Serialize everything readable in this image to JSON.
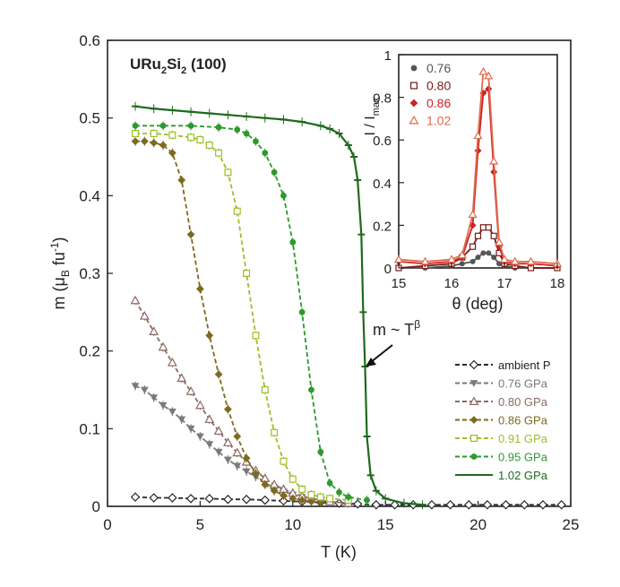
{
  "chart_data": [
    {
      "type": "scatter",
      "title": "URu2Si2 (100)",
      "title_parts": {
        "base": "URu",
        "sub1": "2",
        "mid": "Si",
        "sub2": "2",
        "tail": " (100)"
      },
      "xlabel": "T (K)",
      "ylabel_parts": {
        "a": "m (μ",
        "b": "B",
        "c": " fu",
        "d": "-1",
        "e": ")"
      },
      "xlim": [
        0,
        25
      ],
      "ylim": [
        0,
        0.6
      ],
      "xticks": [
        "0",
        "5",
        "10",
        "15",
        "20",
        "25"
      ],
      "yticks": [
        "0",
        "0.1",
        "0.2",
        "0.3",
        "0.4",
        "0.5",
        "0.6"
      ],
      "annotation": {
        "text": "m ~ T",
        "sup": "β"
      },
      "legend_position": "bottom-right",
      "series": [
        {
          "name": "ambient P",
          "color": "#2a2a2a",
          "marker": "diamond-open",
          "x": [
            1.5,
            2.5,
            3.5,
            4.5,
            5.5,
            6.5,
            7.5,
            8.5,
            9.5,
            10.5,
            11.5,
            12.5,
            13.5,
            14.5,
            15.5,
            16.5,
            17.5,
            18.5,
            19.5,
            20.5,
            21.5,
            22.5,
            23.5,
            24.5
          ],
          "y": [
            0.012,
            0.011,
            0.011,
            0.01,
            0.01,
            0.009,
            0.009,
            0.008,
            0.007,
            0.006,
            0.005,
            0.004,
            0.003,
            0.002,
            0.002,
            0.002,
            0.002,
            0.002,
            0.002,
            0.002,
            0.002,
            0.002,
            0.002,
            0.002
          ]
        },
        {
          "name": "0.76 GPa",
          "color": "#7a7a7a",
          "marker": "triangle-down",
          "x": [
            1.5,
            2.0,
            2.5,
            3.0,
            3.5,
            4.0,
            4.5,
            5.0,
            5.5,
            6.0,
            6.5,
            7.0,
            7.5,
            8.0,
            8.5,
            9.0,
            9.5,
            10.0,
            10.5,
            11.0,
            12.0,
            13.0
          ],
          "y": [
            0.155,
            0.15,
            0.14,
            0.13,
            0.122,
            0.112,
            0.1,
            0.09,
            0.08,
            0.07,
            0.06,
            0.052,
            0.045,
            0.038,
            0.03,
            0.024,
            0.019,
            0.015,
            0.012,
            0.01,
            0.006,
            0.004
          ]
        },
        {
          "name": "0.80 GPa",
          "color": "#8c6a64",
          "marker": "triangle-up-open",
          "x": [
            1.5,
            2.0,
            2.5,
            3.0,
            3.5,
            4.0,
            4.5,
            5.0,
            5.5,
            6.0,
            6.5,
            7.0,
            7.5,
            8.0,
            8.5,
            9.0,
            9.5,
            10.0,
            10.5,
            11.0,
            12.0,
            13.0
          ],
          "y": [
            0.265,
            0.245,
            0.225,
            0.205,
            0.185,
            0.165,
            0.148,
            0.13,
            0.112,
            0.097,
            0.082,
            0.069,
            0.057,
            0.046,
            0.036,
            0.028,
            0.022,
            0.017,
            0.013,
            0.01,
            0.006,
            0.004
          ]
        },
        {
          "name": "0.86 GPa",
          "color": "#7e6a1e",
          "marker": "diamond",
          "x": [
            1.5,
            2.0,
            2.5,
            3.0,
            3.5,
            4.0,
            4.5,
            5.0,
            5.5,
            6.0,
            6.5,
            7.0,
            7.5,
            8.0,
            8.5,
            9.0,
            9.5,
            10.0,
            10.5,
            11.0,
            11.5
          ],
          "y": [
            0.47,
            0.47,
            0.468,
            0.465,
            0.455,
            0.42,
            0.35,
            0.28,
            0.22,
            0.17,
            0.125,
            0.09,
            0.062,
            0.042,
            0.028,
            0.02,
            0.014,
            0.01,
            0.008,
            0.006,
            0.005
          ]
        },
        {
          "name": "0.91 GPa",
          "color": "#9cbf2a",
          "marker": "square-open",
          "x": [
            1.5,
            2.5,
            3.5,
            4.5,
            5.0,
            5.5,
            6.0,
            6.5,
            7.0,
            7.5,
            8.0,
            8.5,
            9.0,
            9.5,
            10.0,
            10.5,
            11.0,
            11.5,
            12.0,
            13.0
          ],
          "y": [
            0.48,
            0.48,
            0.478,
            0.475,
            0.472,
            0.465,
            0.455,
            0.43,
            0.38,
            0.3,
            0.22,
            0.15,
            0.095,
            0.058,
            0.035,
            0.022,
            0.015,
            0.012,
            0.01,
            0.008
          ]
        },
        {
          "name": "0.95 GPa",
          "color": "#2c9a2c",
          "marker": "circle",
          "x": [
            1.5,
            3.0,
            4.5,
            6.0,
            7.0,
            7.5,
            8.0,
            8.5,
            9.0,
            9.5,
            10.0,
            10.5,
            11.0,
            11.5,
            12.0,
            12.5,
            13.0,
            14.0
          ],
          "y": [
            0.49,
            0.49,
            0.49,
            0.488,
            0.485,
            0.48,
            0.47,
            0.455,
            0.43,
            0.4,
            0.34,
            0.25,
            0.15,
            0.07,
            0.03,
            0.018,
            0.012,
            0.008
          ]
        },
        {
          "name": "1.02 GPa",
          "color": "#1e6a1e",
          "marker": "dash",
          "x": [
            1.5,
            2.5,
            3.5,
            4.5,
            5.5,
            6.5,
            7.5,
            8.5,
            9.5,
            10.5,
            11.5,
            12.0,
            12.5,
            13.0,
            13.3,
            13.5,
            13.7,
            13.8,
            13.9,
            14.0,
            14.2,
            14.5,
            15.0,
            16.0,
            17.0
          ],
          "y": [
            0.515,
            0.512,
            0.51,
            0.508,
            0.506,
            0.504,
            0.502,
            0.5,
            0.498,
            0.495,
            0.49,
            0.486,
            0.48,
            0.465,
            0.45,
            0.42,
            0.35,
            0.25,
            0.18,
            0.09,
            0.04,
            0.02,
            0.01,
            0.004,
            0.002
          ]
        }
      ]
    },
    {
      "type": "line",
      "title": "",
      "xlabel": "θ (deg)",
      "ylabel_parts": {
        "a": "I / I",
        "b": "max"
      },
      "xlim": [
        15,
        18
      ],
      "ylim": [
        0,
        1
      ],
      "xticks": [
        "15",
        "16",
        "17",
        "18"
      ],
      "yticks": [
        "0",
        "0.2",
        "0.4",
        "0.6",
        "0.8",
        "1"
      ],
      "x": [
        15.0,
        15.5,
        16.0,
        16.2,
        16.4,
        16.5,
        16.6,
        16.7,
        16.8,
        16.9,
        17.0,
        17.2,
        17.5,
        18.0
      ],
      "legend_position": "top-left",
      "series": [
        {
          "name": "0.76",
          "color": "#555555",
          "marker": "circle",
          "y": [
            0.0,
            0.0,
            0.01,
            0.02,
            0.03,
            0.05,
            0.07,
            0.07,
            0.05,
            0.02,
            0.01,
            0.0,
            0.0,
            0.0
          ]
        },
        {
          "name": "0.80",
          "color": "#7a1a1a",
          "marker": "square-open",
          "y": [
            0.0,
            0.01,
            0.02,
            0.05,
            0.1,
            0.15,
            0.19,
            0.19,
            0.15,
            0.07,
            0.02,
            0.01,
            0.0,
            0.0
          ]
        },
        {
          "name": "0.86",
          "color": "#cc2222",
          "marker": "diamond",
          "y": [
            0.03,
            0.02,
            0.03,
            0.05,
            0.2,
            0.55,
            0.82,
            0.84,
            0.45,
            0.1,
            0.03,
            0.02,
            0.02,
            0.01
          ]
        },
        {
          "name": "1.02",
          "color": "#e06a4a",
          "marker": "triangle-up-open",
          "y": [
            0.04,
            0.03,
            0.04,
            0.06,
            0.25,
            0.62,
            0.92,
            0.9,
            0.5,
            0.12,
            0.04,
            0.03,
            0.03,
            0.02
          ]
        }
      ]
    }
  ]
}
